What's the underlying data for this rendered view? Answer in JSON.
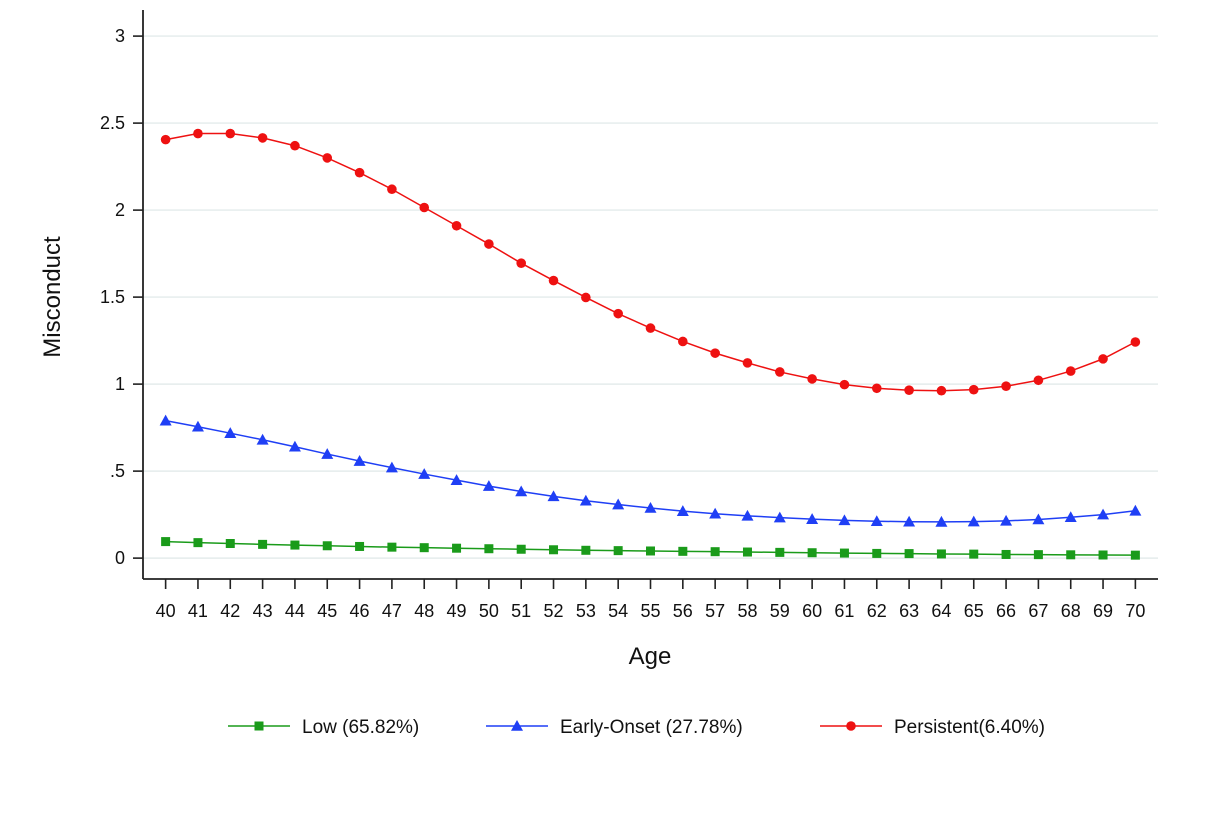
{
  "chart_data": {
    "type": "line",
    "title": "",
    "xlabel": "Age",
    "ylabel": "Misconduct",
    "x": [
      40,
      41,
      42,
      43,
      44,
      45,
      46,
      47,
      48,
      49,
      50,
      51,
      52,
      53,
      54,
      55,
      56,
      57,
      58,
      59,
      60,
      61,
      62,
      63,
      64,
      65,
      66,
      67,
      68,
      69,
      70
    ],
    "x_tick_labels": [
      "40",
      "41",
      "42",
      "43",
      "44",
      "45",
      "46",
      "47",
      "48",
      "49",
      "50",
      "51",
      "52",
      "53",
      "54",
      "55",
      "56",
      "57",
      "58",
      "59",
      "60",
      "61",
      "62",
      "63",
      "64",
      "65",
      "66",
      "67",
      "68",
      "69",
      "70"
    ],
    "y_ticks": [
      0,
      0.5,
      1,
      1.5,
      2,
      2.5,
      3
    ],
    "y_tick_labels": [
      "0",
      ".5",
      "1",
      "1.5",
      "2",
      "2.5",
      "3"
    ],
    "ylim": [
      -0.12,
      3.15
    ],
    "xlim": [
      39.3,
      70.7
    ],
    "grid": true,
    "legend_position": "bottom",
    "series": [
      {
        "name": "Low (65.82%)",
        "color": "#1a9b1a",
        "marker": "square",
        "values": [
          0.095,
          0.089,
          0.084,
          0.079,
          0.075,
          0.071,
          0.067,
          0.063,
          0.06,
          0.057,
          0.054,
          0.051,
          0.048,
          0.045,
          0.043,
          0.041,
          0.039,
          0.037,
          0.035,
          0.033,
          0.031,
          0.029,
          0.027,
          0.026,
          0.024,
          0.023,
          0.021,
          0.02,
          0.019,
          0.018,
          0.017
        ]
      },
      {
        "name": "Early-Onset (27.78%)",
        "color": "#1f3ff5",
        "marker": "triangle",
        "values": [
          0.79,
          0.755,
          0.718,
          0.68,
          0.64,
          0.598,
          0.558,
          0.52,
          0.483,
          0.448,
          0.414,
          0.383,
          0.355,
          0.33,
          0.308,
          0.288,
          0.27,
          0.255,
          0.243,
          0.233,
          0.224,
          0.217,
          0.212,
          0.209,
          0.208,
          0.21,
          0.214,
          0.222,
          0.235,
          0.25,
          0.272
        ]
      },
      {
        "name": "Persistent(6.40%)",
        "color": "#ee1111",
        "marker": "circle",
        "values": [
          2.405,
          2.44,
          2.44,
          2.415,
          2.37,
          2.3,
          2.215,
          2.12,
          2.015,
          1.91,
          1.805,
          1.695,
          1.595,
          1.498,
          1.405,
          1.322,
          1.245,
          1.178,
          1.122,
          1.07,
          1.03,
          0.997,
          0.976,
          0.965,
          0.962,
          0.968,
          0.988,
          1.022,
          1.075,
          1.145,
          1.242
        ]
      }
    ]
  }
}
